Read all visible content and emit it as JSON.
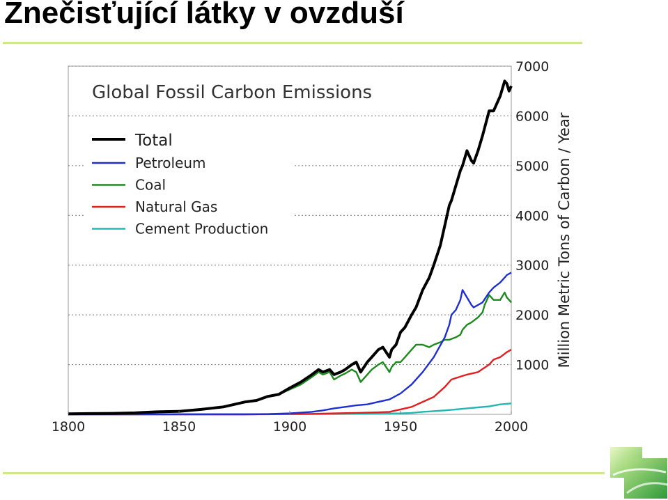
{
  "slide": {
    "title": "Znečisťující látky v ovzduší",
    "accent_color": "#cfe88a"
  },
  "chart_data": {
    "type": "line",
    "title": "Global Fossil Carbon Emissions",
    "xlabel": "",
    "ylabel": "Million Metric Tons of Carbon / Year",
    "xlim": [
      1800,
      2000
    ],
    "ylim": [
      0,
      7000
    ],
    "xticks": [
      1800,
      1850,
      1900,
      1950,
      2000
    ],
    "yticks": [
      1000,
      2000,
      3000,
      4000,
      5000,
      6000,
      7000
    ],
    "y_axis_side": "right",
    "grid": "horizontal dotted",
    "legend_placement": "top-left",
    "series": [
      {
        "name": "Total",
        "color": "#000000",
        "x": [
          1800,
          1810,
          1820,
          1830,
          1840,
          1850,
          1860,
          1870,
          1880,
          1885,
          1890,
          1895,
          1900,
          1905,
          1910,
          1913,
          1915,
          1918,
          1920,
          1923,
          1925,
          1928,
          1930,
          1932,
          1935,
          1937,
          1940,
          1942,
          1945,
          1946,
          1948,
          1950,
          1952,
          1955,
          1957,
          1960,
          1963,
          1965,
          1968,
          1970,
          1972,
          1973,
          1975,
          1977,
          1978,
          1980,
          1982,
          1983,
          1985,
          1987,
          1990,
          1992,
          1995,
          1997,
          1998,
          1999,
          2000
        ],
        "y": [
          10,
          15,
          20,
          30,
          50,
          60,
          100,
          150,
          250,
          280,
          360,
          400,
          530,
          650,
          800,
          900,
          850,
          900,
          800,
          850,
          900,
          1000,
          1050,
          850,
          1050,
          1150,
          1300,
          1350,
          1150,
          1300,
          1400,
          1650,
          1750,
          2000,
          2150,
          2500,
          2750,
          3000,
          3400,
          3800,
          4200,
          4300,
          4600,
          4900,
          5000,
          5300,
          5100,
          5050,
          5300,
          5600,
          6100,
          6100,
          6400,
          6700,
          6650,
          6500,
          6600
        ]
      },
      {
        "name": "Petroleum",
        "color": "#1f2fcf",
        "x": [
          1800,
          1880,
          1890,
          1900,
          1910,
          1915,
          1920,
          1925,
          1930,
          1935,
          1940,
          1945,
          1950,
          1955,
          1960,
          1965,
          1970,
          1972,
          1973,
          1975,
          1977,
          1978,
          1980,
          1982,
          1983,
          1985,
          1987,
          1990,
          1992,
          1995,
          1997,
          1998,
          2000
        ],
        "y": [
          0,
          0,
          5,
          20,
          50,
          80,
          120,
          150,
          180,
          200,
          250,
          300,
          420,
          600,
          850,
          1150,
          1550,
          1800,
          2000,
          2100,
          2300,
          2500,
          2350,
          2200,
          2150,
          2200,
          2250,
          2450,
          2550,
          2650,
          2750,
          2800,
          2850
        ]
      },
      {
        "name": "Coal",
        "color": "#1e8a1e",
        "x": [
          1800,
          1810,
          1820,
          1830,
          1840,
          1850,
          1860,
          1870,
          1880,
          1885,
          1890,
          1895,
          1900,
          1905,
          1910,
          1913,
          1915,
          1918,
          1920,
          1923,
          1925,
          1928,
          1930,
          1932,
          1935,
          1937,
          1940,
          1942,
          1945,
          1946,
          1948,
          1950,
          1952,
          1955,
          1957,
          1960,
          1963,
          1965,
          1968,
          1970,
          1972,
          1975,
          1977,
          1978,
          1980,
          1982,
          1985,
          1987,
          1988,
          1990,
          1992,
          1995,
          1997,
          1998,
          2000
        ],
        "y": [
          10,
          15,
          20,
          30,
          50,
          60,
          100,
          150,
          250,
          280,
          350,
          400,
          500,
          600,
          750,
          850,
          800,
          850,
          700,
          780,
          820,
          900,
          850,
          650,
          800,
          900,
          1000,
          1050,
          850,
          950,
          1050,
          1050,
          1150,
          1300,
          1400,
          1400,
          1350,
          1400,
          1450,
          1500,
          1500,
          1550,
          1600,
          1700,
          1800,
          1850,
          1950,
          2050,
          2200,
          2400,
          2300,
          2300,
          2450,
          2350,
          2250
        ]
      },
      {
        "name": "Natural Gas",
        "color": "#e02020",
        "x": [
          1800,
          1880,
          1890,
          1900,
          1910,
          1920,
          1930,
          1940,
          1945,
          1950,
          1955,
          1960,
          1965,
          1970,
          1973,
          1975,
          1980,
          1985,
          1990,
          1992,
          1995,
          1998,
          2000
        ],
        "y": [
          0,
          0,
          2,
          5,
          10,
          20,
          30,
          40,
          50,
          100,
          150,
          250,
          350,
          550,
          700,
          730,
          800,
          850,
          1000,
          1100,
          1150,
          1250,
          1300
        ]
      },
      {
        "name": "Cement Production",
        "color": "#20b8b0",
        "x": [
          1800,
          1920,
          1930,
          1940,
          1950,
          1955,
          1960,
          1965,
          1970,
          1975,
          1980,
          1985,
          1990,
          1995,
          2000
        ],
        "y": [
          0,
          5,
          10,
          15,
          20,
          30,
          50,
          65,
          80,
          100,
          120,
          140,
          160,
          200,
          220
        ]
      }
    ]
  }
}
